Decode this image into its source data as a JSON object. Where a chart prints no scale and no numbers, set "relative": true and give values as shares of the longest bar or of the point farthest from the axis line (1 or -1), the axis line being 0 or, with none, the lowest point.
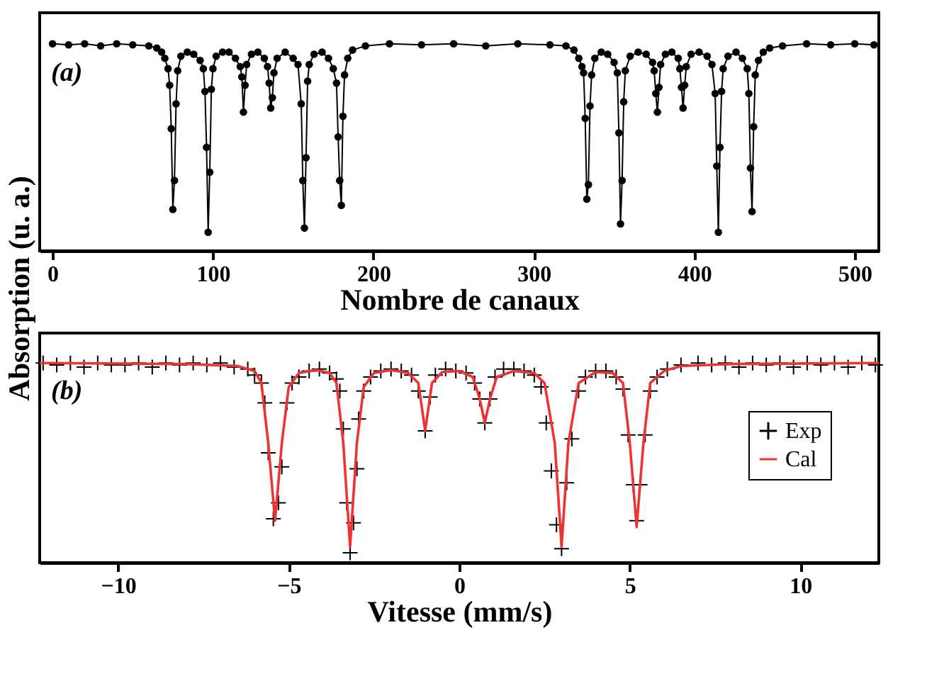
{
  "chart_data": [
    {
      "type": "line",
      "xlabel": "Nombre de canaux",
      "ylabel": "Absorption (u. a.)",
      "annotations": [
        "(a)"
      ],
      "relative": true,
      "color": "#000000",
      "marker": "circle",
      "line_style": "solid",
      "grid": false,
      "legend": false,
      "xlim": [
        -8,
        515
      ],
      "xticks": [
        0,
        100,
        200,
        300,
        400,
        500
      ],
      "x": [
        0,
        10,
        20,
        30,
        40,
        50,
        60,
        65,
        68,
        70,
        72,
        73,
        74,
        75,
        76,
        77,
        78,
        80,
        84,
        88,
        92,
        94,
        95,
        96,
        97,
        98,
        99,
        100,
        102,
        106,
        110,
        114,
        117,
        118,
        119,
        120,
        121,
        124,
        128,
        132,
        134,
        135,
        136,
        137,
        138,
        140,
        145,
        150,
        153,
        155,
        156,
        157,
        158,
        159,
        160,
        163,
        168,
        172,
        175,
        177,
        178,
        179,
        180,
        181,
        182,
        184,
        187,
        195,
        210,
        230,
        250,
        270,
        290,
        310,
        320,
        325,
        328,
        330,
        331,
        332,
        333,
        334,
        335,
        336,
        338,
        342,
        346,
        350,
        352,
        353,
        354,
        355,
        356,
        357,
        360,
        365,
        370,
        374,
        375,
        376,
        377,
        378,
        379,
        382,
        386,
        390,
        391,
        392,
        393,
        394,
        395,
        398,
        403,
        408,
        411,
        413,
        414,
        415,
        416,
        417,
        418,
        421,
        426,
        430,
        433,
        434,
        435,
        436,
        437,
        438,
        440,
        443,
        447,
        455,
        470,
        485,
        500,
        512
      ],
      "values": [
        1.0,
        0.995,
        1.0,
        0.99,
        1.0,
        0.995,
        0.99,
        0.98,
        0.96,
        0.93,
        0.88,
        0.8,
        0.59,
        0.2,
        0.34,
        0.71,
        0.87,
        0.94,
        0.96,
        0.95,
        0.92,
        0.88,
        0.77,
        0.5,
        0.09,
        0.38,
        0.78,
        0.88,
        0.94,
        0.96,
        0.96,
        0.93,
        0.89,
        0.84,
        0.67,
        0.8,
        0.9,
        0.95,
        0.96,
        0.93,
        0.89,
        0.81,
        0.69,
        0.74,
        0.86,
        0.93,
        0.96,
        0.93,
        0.9,
        0.71,
        0.34,
        0.11,
        0.45,
        0.82,
        0.9,
        0.95,
        0.96,
        0.93,
        0.88,
        0.81,
        0.55,
        0.34,
        0.22,
        0.65,
        0.85,
        0.93,
        0.97,
        0.99,
        1.0,
        0.995,
        1.0,
        0.99,
        1.0,
        0.995,
        0.99,
        0.97,
        0.93,
        0.89,
        0.86,
        0.64,
        0.25,
        0.32,
        0.7,
        0.85,
        0.93,
        0.96,
        0.95,
        0.91,
        0.86,
        0.57,
        0.13,
        0.34,
        0.72,
        0.87,
        0.94,
        0.96,
        0.95,
        0.91,
        0.87,
        0.76,
        0.67,
        0.79,
        0.9,
        0.95,
        0.96,
        0.93,
        0.88,
        0.79,
        0.69,
        0.8,
        0.89,
        0.95,
        0.96,
        0.94,
        0.9,
        0.76,
        0.41,
        0.09,
        0.5,
        0.77,
        0.88,
        0.94,
        0.96,
        0.93,
        0.88,
        0.76,
        0.4,
        0.19,
        0.6,
        0.85,
        0.92,
        0.96,
        0.98,
        0.99,
        1.0,
        0.995,
        1.0,
        0.995
      ]
    },
    {
      "type": "line",
      "xlabel": "Vitesse (mm/s)",
      "annotations": [
        "(b)"
      ],
      "relative": true,
      "grid": false,
      "legend": "right",
      "xlim": [
        -12.3,
        12.3
      ],
      "xticks": [
        -10,
        -5,
        0,
        5,
        10
      ],
      "series": [
        {
          "name": "Exp",
          "type": "scatter",
          "marker": "cross",
          "color": "#000000",
          "x": [
            -12.2,
            -11.8,
            -11.4,
            -11.0,
            -10.6,
            -10.2,
            -9.8,
            -9.4,
            -9.0,
            -8.6,
            -8.2,
            -7.8,
            -7.4,
            -7.0,
            -6.6,
            -6.2,
            -6.0,
            -5.8,
            -5.7,
            -5.6,
            -5.45,
            -5.3,
            -5.2,
            -5.05,
            -4.9,
            -4.7,
            -4.4,
            -4.1,
            -3.8,
            -3.6,
            -3.5,
            -3.4,
            -3.3,
            -3.2,
            -3.1,
            -3.0,
            -2.95,
            -2.8,
            -2.6,
            -2.3,
            -2.0,
            -1.7,
            -1.4,
            -1.2,
            -1.0,
            -0.85,
            -0.7,
            -0.4,
            -0.1,
            0.2,
            0.45,
            0.6,
            0.75,
            0.9,
            1.05,
            1.3,
            1.6,
            1.9,
            2.2,
            2.4,
            2.55,
            2.7,
            2.85,
            3.0,
            3.15,
            3.3,
            3.5,
            3.7,
            4.0,
            4.3,
            4.6,
            4.8,
            4.95,
            5.1,
            5.2,
            5.3,
            5.45,
            5.6,
            5.8,
            6.1,
            6.5,
            7.0,
            7.4,
            7.8,
            8.2,
            8.6,
            9.0,
            9.4,
            9.8,
            10.2,
            10.6,
            11.0,
            11.4,
            11.8,
            12.2
          ],
          "values": [
            1.0,
            0.99,
            1.0,
            0.98,
            1.0,
            0.99,
            0.99,
            1.0,
            0.98,
            1.0,
            0.99,
            1.0,
            0.99,
            1.0,
            0.98,
            0.97,
            0.94,
            0.9,
            0.8,
            0.55,
            0.22,
            0.3,
            0.48,
            0.8,
            0.9,
            0.93,
            0.96,
            0.97,
            0.95,
            0.92,
            0.86,
            0.67,
            0.3,
            0.05,
            0.2,
            0.47,
            0.72,
            0.86,
            0.93,
            0.96,
            0.97,
            0.96,
            0.94,
            0.86,
            0.66,
            0.83,
            0.94,
            0.97,
            0.96,
            0.95,
            0.9,
            0.82,
            0.7,
            0.82,
            0.93,
            0.97,
            0.97,
            0.96,
            0.94,
            0.88,
            0.7,
            0.46,
            0.19,
            0.07,
            0.4,
            0.62,
            0.86,
            0.93,
            0.96,
            0.96,
            0.93,
            0.87,
            0.64,
            0.39,
            0.21,
            0.39,
            0.64,
            0.86,
            0.93,
            0.97,
            0.99,
            1.0,
            0.99,
            1.0,
            0.98,
            1.0,
            0.99,
            1.0,
            0.98,
            1.0,
            0.99,
            1.0,
            0.98,
            1.0,
            0.99
          ]
        },
        {
          "name": "Cal",
          "type": "line",
          "marker": "none",
          "line_style": "solid",
          "color": "#ee3333",
          "x": [
            -12.3,
            -8,
            -6.5,
            -6.0,
            -5.8,
            -5.6,
            -5.4,
            -5.2,
            -5.0,
            -4.7,
            -4.2,
            -3.8,
            -3.6,
            -3.4,
            -3.2,
            -3.0,
            -2.8,
            -2.5,
            -2.0,
            -1.5,
            -1.2,
            -1.0,
            -0.8,
            -0.5,
            0.0,
            0.4,
            0.6,
            0.75,
            0.9,
            1.1,
            1.6,
            2.2,
            2.5,
            2.8,
            3.0,
            3.2,
            3.5,
            4.0,
            4.5,
            4.8,
            5.0,
            5.2,
            5.4,
            5.6,
            6.0,
            6.5,
            8,
            12.3
          ],
          "values": [
            1.0,
            0.995,
            0.985,
            0.96,
            0.9,
            0.6,
            0.21,
            0.6,
            0.88,
            0.95,
            0.965,
            0.95,
            0.9,
            0.6,
            0.08,
            0.6,
            0.88,
            0.95,
            0.965,
            0.95,
            0.9,
            0.66,
            0.9,
            0.955,
            0.96,
            0.93,
            0.82,
            0.7,
            0.82,
            0.93,
            0.96,
            0.95,
            0.9,
            0.6,
            0.08,
            0.6,
            0.9,
            0.955,
            0.95,
            0.9,
            0.6,
            0.18,
            0.6,
            0.9,
            0.96,
            0.985,
            0.995,
            1.0
          ]
        }
      ]
    }
  ]
}
